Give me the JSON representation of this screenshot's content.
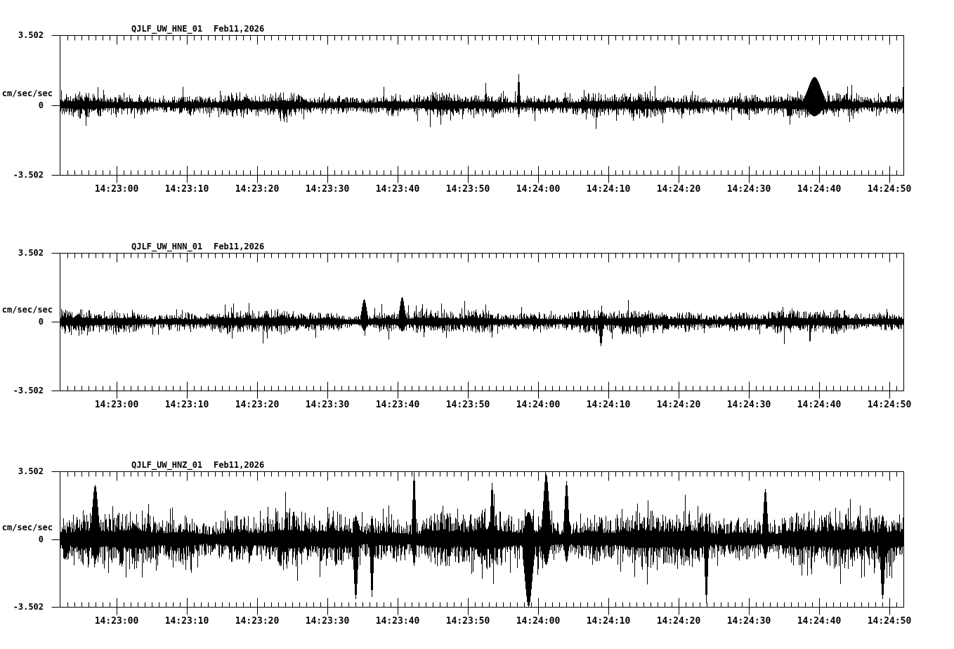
{
  "figure": {
    "background": "#ffffff",
    "ink": "#000000",
    "kind": "three-component seismogram strip chart",
    "x_minor_interval_s": 1,
    "x_major_interval_s": 10
  },
  "chart_data": [
    {
      "type": "line",
      "title": "QJLF_UW_HNE_01",
      "date": "Feb11,2026",
      "ylabel": "cm/sec/sec",
      "ylim": [
        -3.502,
        3.502
      ],
      "ytick_labels": [
        "3.502",
        "0",
        "-3.502"
      ],
      "xtick_labels": [
        "14:23:00",
        "14:23:10",
        "14:23:20",
        "14:23:30",
        "14:23:40",
        "14:23:50",
        "14:24:00",
        "14:24:10",
        "14:24:20",
        "14:24:30",
        "14:24:40",
        "14:24:50"
      ],
      "grid": false,
      "legend": "none",
      "series": {
        "name": "HNE",
        "baseline": 0,
        "core_amp": 0.33,
        "spike_prob": 0.15,
        "spike_amp": 1.0,
        "seed": 101,
        "events": [
          {
            "frac": 0.894,
            "amp": 1.4,
            "width": 14
          },
          {
            "frac": 0.543,
            "amp": 1.55,
            "width": 2
          }
        ]
      }
    },
    {
      "type": "line",
      "title": "QJLF_UW_HNN_01",
      "date": "Feb11,2026",
      "ylabel": "cm/sec/sec",
      "ylim": [
        -3.502,
        3.502
      ],
      "ytick_labels": [
        "3.502",
        "0",
        "-3.502"
      ],
      "xtick_labels": [
        "14:23:00",
        "14:23:10",
        "14:23:20",
        "14:23:30",
        "14:23:40",
        "14:23:50",
        "14:24:00",
        "14:24:10",
        "14:24:20",
        "14:24:30",
        "14:24:40",
        "14:24:50"
      ],
      "grid": false,
      "legend": "none",
      "series": {
        "name": "HNN",
        "baseline": 0,
        "core_amp": 0.33,
        "spike_prob": 0.15,
        "spike_amp": 1.0,
        "seed": 202,
        "events": [
          {
            "frac": 0.36,
            "amp": 1.15,
            "width": 5
          },
          {
            "frac": 0.405,
            "amp": 1.25,
            "width": 5
          },
          {
            "frac": 0.641,
            "amp": -1.25,
            "width": 3
          }
        ]
      }
    },
    {
      "type": "line",
      "title": "QJLF_UW_HNZ_01",
      "date": "Feb11,2026",
      "ylabel": "cm/sec/sec",
      "ylim": [
        -3.502,
        3.502
      ],
      "ytick_labels": [
        "3.502",
        "0",
        "-3.502"
      ],
      "xtick_labels": [
        "14:23:00",
        "14:23:10",
        "14:23:20",
        "14:23:30",
        "14:23:40",
        "14:23:50",
        "14:24:00",
        "14:24:10",
        "14:24:20",
        "14:24:30",
        "14:24:40",
        "14:24:50"
      ],
      "grid": false,
      "legend": "none",
      "series": {
        "name": "HNZ",
        "baseline": 0,
        "core_amp": 0.78,
        "spike_prob": 0.32,
        "spike_amp": 1.9,
        "seed": 303,
        "events": [
          {
            "frac": 0.041,
            "amp": 2.8,
            "width": 6
          },
          {
            "frac": 0.35,
            "amp": -3.1,
            "width": 4
          },
          {
            "frac": 0.369,
            "amp": -3.0,
            "width": 3
          },
          {
            "frac": 0.419,
            "amp": 3.45,
            "width": 3
          },
          {
            "frac": 0.512,
            "amp": 2.9,
            "width": 3
          },
          {
            "frac": 0.555,
            "amp": -3.5,
            "width": 8
          },
          {
            "frac": 0.576,
            "amp": 3.35,
            "width": 6
          },
          {
            "frac": 0.6,
            "amp": 3.0,
            "width": 4
          },
          {
            "frac": 0.766,
            "amp": -3.3,
            "width": 3
          },
          {
            "frac": 0.836,
            "amp": 2.6,
            "width": 4
          },
          {
            "frac": 0.975,
            "amp": -3.1,
            "width": 4
          }
        ]
      }
    }
  ]
}
